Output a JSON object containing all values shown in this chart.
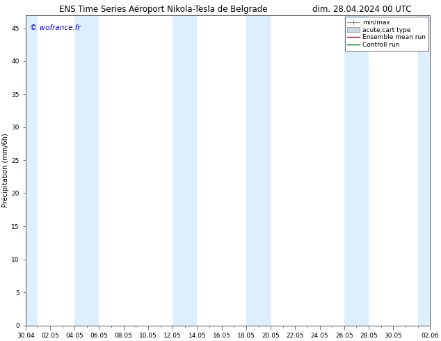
{
  "title_left": "ENS Time Series Aéroport Nikola-Tesla de Belgrade",
  "title_right": "dim. 28.04.2024 00 UTC",
  "ylabel": "Precipitation (mm/6h)",
  "ylabel_display": "Précipitation (mm/6h)",
  "watermark": "© wofrance.fr",
  "ylim": [
    0,
    47
  ],
  "yticks": [
    0,
    5,
    10,
    15,
    20,
    25,
    30,
    35,
    40,
    45
  ],
  "xtick_labels": [
    "30.04",
    "02.05",
    "04.05",
    "06.05",
    "08.05",
    "10.05",
    "12.05",
    "14.05",
    "16.05",
    "18.05",
    "20.05",
    "22.05",
    "24.05",
    "26.05",
    "28.05",
    "30.05",
    "02.06"
  ],
  "xtick_positions": [
    0,
    2,
    4,
    6,
    8,
    10,
    12,
    14,
    16,
    18,
    20,
    22,
    24,
    26,
    28,
    30,
    33
  ],
  "shaded_band_positions": [
    0,
    4,
    12,
    18,
    26,
    32
  ],
  "shaded_band_widths": [
    1,
    2,
    2,
    2,
    2,
    1
  ],
  "band_color": "#ddeeff",
  "background_color": "#ffffff",
  "plot_bg_color": "#ffffff",
  "legend_labels": [
    "min/max",
    "acute;cart type",
    "Ensemble mean run",
    "Controll run"
  ],
  "title_fontsize": 8.5,
  "axis_fontsize": 7,
  "tick_fontsize": 6.5,
  "watermark_fontsize": 7.5,
  "watermark_color": "#0000cc",
  "x_total": 33
}
